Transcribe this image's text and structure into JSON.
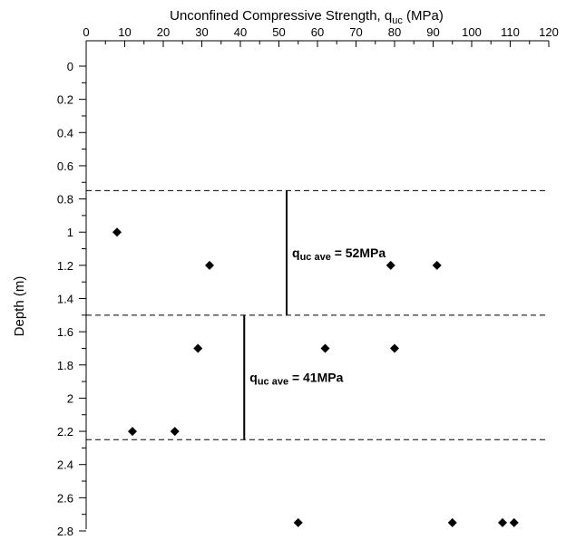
{
  "chart_data": {
    "type": "scatter",
    "xlabel_main": "Unconfined Compressive Strength, q",
    "xlabel_sub": "uc",
    "xlabel_unit": " (MPa)",
    "ylabel": "Depth (m)",
    "xlim": [
      0,
      120
    ],
    "ylim": [
      0,
      2.8
    ],
    "x_ticks": [
      0,
      10,
      20,
      30,
      40,
      50,
      60,
      70,
      80,
      90,
      100,
      110,
      120
    ],
    "y_ticks": [
      0,
      0.2,
      0.4,
      0.6,
      0.8,
      1,
      1.2,
      1.4,
      1.6,
      1.8,
      2,
      2.2,
      2.4,
      2.6,
      2.8
    ],
    "x_axis_position": "top",
    "y_inverted": true,
    "grid": false,
    "marker": "diamond",
    "marker_color": "#000000",
    "points": [
      {
        "x": 8,
        "y": 1.0
      },
      {
        "x": 32,
        "y": 1.2
      },
      {
        "x": 79,
        "y": 1.2
      },
      {
        "x": 91,
        "y": 1.2
      },
      {
        "x": 29,
        "y": 1.7
      },
      {
        "x": 62,
        "y": 1.7
      },
      {
        "x": 80,
        "y": 1.7
      },
      {
        "x": 12,
        "y": 2.2
      },
      {
        "x": 23,
        "y": 2.2
      },
      {
        "x": 55,
        "y": 2.75
      },
      {
        "x": 95,
        "y": 2.75
      },
      {
        "x": 108,
        "y": 2.75
      },
      {
        "x": 111,
        "y": 2.75
      }
    ],
    "boundaries": [
      0.75,
      1.5,
      2.25
    ],
    "averages": [
      {
        "q": "q",
        "sub": "uc ave",
        "text": " = 52MPa",
        "value": 52,
        "y_from": 0.75,
        "y_to": 1.5
      },
      {
        "q": "q",
        "sub": "uc ave",
        "text": " = 41MPa",
        "value": 41,
        "y_from": 1.5,
        "y_to": 2.25
      }
    ]
  }
}
